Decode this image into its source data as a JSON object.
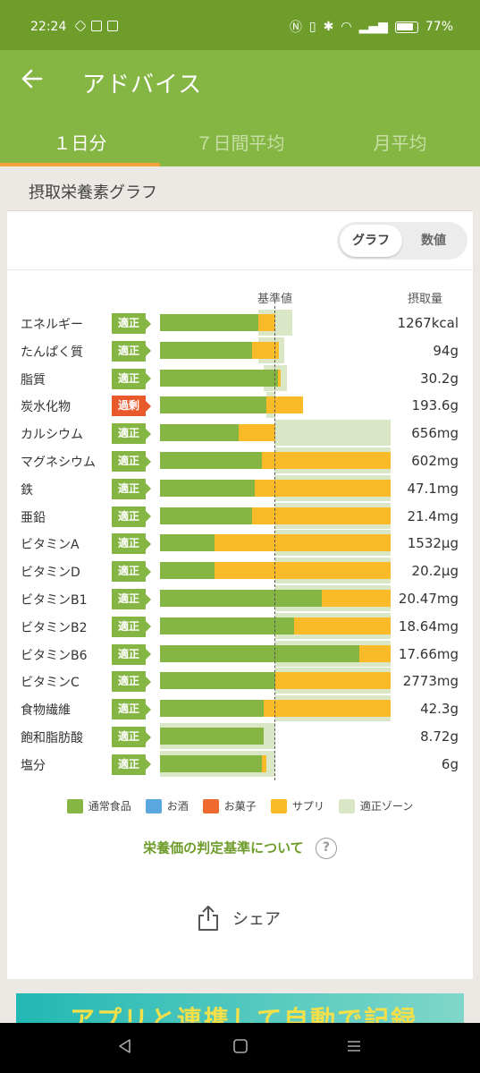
{
  "status": {
    "time": "22:24",
    "battery": "77%"
  },
  "appbar": {
    "title": "アドバイス"
  },
  "tabs": [
    "１日分",
    "７日間平均",
    "月平均"
  ],
  "card": {
    "title": "摂取栄養素グラフ",
    "toggle": {
      "graph": "グラフ",
      "numeric": "数値"
    },
    "col_base": "基準値",
    "col_intake": "摂取量"
  },
  "colors": {
    "food": "#85b643",
    "alcohol": "#5aa6df",
    "sweets": "#ee6a2e",
    "supplement": "#fbbb28",
    "zone": "#d9e7c6"
  },
  "nutrients": [
    {
      "name": "エネルギー",
      "status": "適正",
      "kind": "ok",
      "value": "1267kcal",
      "food": 0.85,
      "supp": 0.15,
      "zone": [
        0.85,
        1.15
      ]
    },
    {
      "name": "たんぱく質",
      "status": "適正",
      "kind": "ok",
      "value": "94g",
      "food": 0.8,
      "supp": 0.23,
      "zone": [
        0.85,
        1.08
      ]
    },
    {
      "name": "脂質",
      "status": "適正",
      "kind": "ok",
      "value": "30.2g",
      "food": 1.02,
      "supp": 0.03,
      "zone": [
        0.9,
        1.1
      ]
    },
    {
      "name": "炭水化物",
      "status": "過剰",
      "kind": "over",
      "value": "193.6g",
      "food": 0.92,
      "supp": 0.32,
      "zone": [
        0.92,
        1.0
      ]
    },
    {
      "name": "カルシウム",
      "status": "適正",
      "kind": "ok",
      "value": "656mg",
      "food": 0.68,
      "supp": 0.32,
      "zone": [
        1.0,
        2.0
      ]
    },
    {
      "name": "マグネシウム",
      "status": "適正",
      "kind": "ok",
      "value": "602mg",
      "food": 0.88,
      "supp": 1.12,
      "zone": [
        1.0,
        2.0
      ]
    },
    {
      "name": "鉄",
      "status": "適正",
      "kind": "ok",
      "value": "47.1mg",
      "food": 0.82,
      "supp": 1.18,
      "zone": [
        1.0,
        2.0
      ]
    },
    {
      "name": "亜鉛",
      "status": "適正",
      "kind": "ok",
      "value": "21.4mg",
      "food": 0.8,
      "supp": 1.2,
      "zone": [
        1.0,
        2.0
      ]
    },
    {
      "name": "ビタミンA",
      "status": "適正",
      "kind": "ok",
      "value": "1532µg",
      "food": 0.47,
      "supp": 1.53,
      "zone": [
        1.0,
        2.0
      ]
    },
    {
      "name": "ビタミンD",
      "status": "適正",
      "kind": "ok",
      "value": "20.2µg",
      "food": 0.47,
      "supp": 1.53,
      "zone": [
        1.0,
        2.0
      ]
    },
    {
      "name": "ビタミンB1",
      "status": "適正",
      "kind": "ok",
      "value": "20.47mg",
      "food": 1.4,
      "supp": 0.6,
      "zone": [
        1.0,
        2.0
      ]
    },
    {
      "name": "ビタミンB2",
      "status": "適正",
      "kind": "ok",
      "value": "18.64mg",
      "food": 1.16,
      "supp": 0.84,
      "zone": [
        1.0,
        2.0
      ]
    },
    {
      "name": "ビタミンB6",
      "status": "適正",
      "kind": "ok",
      "value": "17.66mg",
      "food": 1.73,
      "supp": 0.27,
      "zone": [
        1.0,
        2.0
      ]
    },
    {
      "name": "ビタミンC",
      "status": "適正",
      "kind": "ok",
      "value": "2773mg",
      "food": 1.0,
      "supp": 1.0,
      "zone": [
        1.0,
        2.0
      ]
    },
    {
      "name": "食物繊維",
      "status": "適正",
      "kind": "ok",
      "value": "42.3g",
      "food": 0.9,
      "supp": 1.1,
      "zone": [
        1.0,
        2.0
      ]
    },
    {
      "name": "飽和脂肪酸",
      "status": "適正",
      "kind": "ok",
      "value": "8.72g",
      "food": 0.9,
      "supp": 0.0,
      "zone": [
        0.0,
        1.0
      ]
    },
    {
      "name": "塩分",
      "status": "適正",
      "kind": "ok",
      "value": "6g",
      "food": 0.88,
      "supp": 0.04,
      "zone": [
        0.0,
        1.0
      ]
    }
  ],
  "legend": [
    {
      "label": "通常食品",
      "color": "#85b643"
    },
    {
      "label": "お酒",
      "color": "#5aa6df"
    },
    {
      "label": "お菓子",
      "color": "#ee6a2e"
    },
    {
      "label": "サプリ",
      "color": "#fbbb28"
    },
    {
      "label": "適正ゾーン",
      "color": "#d9e7c6"
    }
  ],
  "links": {
    "criteria": "栄養価の判定基準について",
    "help": "?"
  },
  "share": "シェア",
  "banner": "アプリと連携して自動で記録"
}
